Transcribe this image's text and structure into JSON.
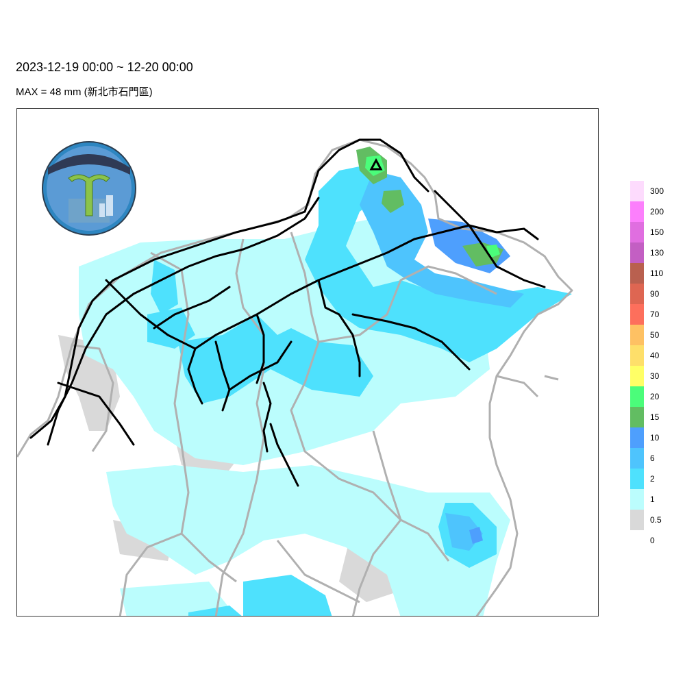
{
  "header": {
    "title": "2023-12-19 00:00 ~ 12-20 00:00",
    "subtitle": "MAX = 48 mm (新北市石門區)"
  },
  "map": {
    "max_station_marker": "triangle-icon"
  },
  "legend": {
    "levels": [
      {
        "label": "300",
        "color": "#FDDBFD"
      },
      {
        "label": "200",
        "color": "#FC7FFC"
      },
      {
        "label": "150",
        "color": "#E06EE0"
      },
      {
        "label": "130",
        "color": "#C35FC3"
      },
      {
        "label": "110",
        "color": "#B9604F"
      },
      {
        "label": "90",
        "color": "#DE6652"
      },
      {
        "label": "70",
        "color": "#FD6F5C"
      },
      {
        "label": "50",
        "color": "#FEC163"
      },
      {
        "label": "40",
        "color": "#FEDF6A"
      },
      {
        "label": "30",
        "color": "#FFFF66"
      },
      {
        "label": "20",
        "color": "#4BFD7A"
      },
      {
        "label": "15",
        "color": "#62BD62"
      },
      {
        "label": "10",
        "color": "#4E9FFD"
      },
      {
        "label": "6",
        "color": "#4EC4FD"
      },
      {
        "label": "2",
        "color": "#4EE1FD"
      },
      {
        "label": "1",
        "color": "#BBFDFD"
      },
      {
        "label": "0.5",
        "color": "#D9D9D9"
      },
      {
        "label": "0",
        "color": "#FFFFFF"
      }
    ]
  }
}
